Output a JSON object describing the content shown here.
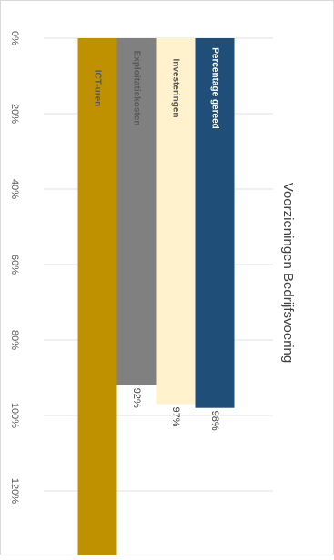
{
  "chart_data": {
    "type": "bar",
    "orientation": "horizontal",
    "title": "Voorzieningen Bedrijfsvoering",
    "xlim": [
      0,
      1.4
    ],
    "ticks": [
      "0%",
      "20%",
      "40%",
      "60%",
      "80%",
      "100%",
      "120%",
      "1"
    ],
    "grid": true,
    "categories": [
      "Percentage gereed",
      "Investeringen",
      "Exploitatiekosten",
      "ICT-uren"
    ],
    "values": [
      0.98,
      0.97,
      0.92,
      1.4
    ],
    "data_labels": [
      "98%",
      "97%",
      "92%",
      ""
    ],
    "colors": [
      "#1f4e79",
      "#fff2cc",
      "#808080",
      "#bf9000"
    ],
    "label_colors": [
      "#ffffff",
      "#595959",
      "#595959",
      "#595959"
    ]
  }
}
